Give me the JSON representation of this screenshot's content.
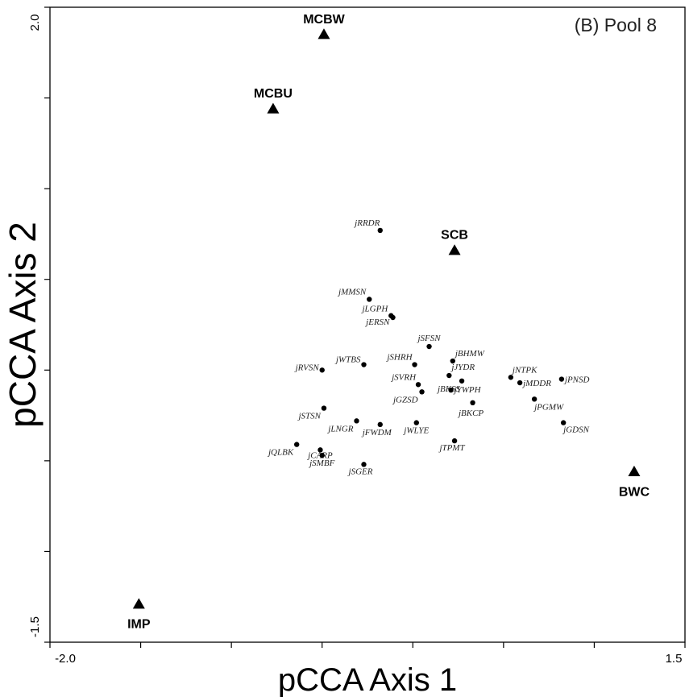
{
  "chart_data": {
    "type": "scatter",
    "title": "(B) Pool 8",
    "xlabel": "pCCA Axis 1",
    "ylabel": "pCCA Axis 2",
    "xlim": [
      -2.0,
      1.5
    ],
    "ylim": [
      -1.5,
      2.0
    ],
    "x_tick_labels": [
      "-2.0",
      "1.5"
    ],
    "y_tick_labels": [
      "-1.5",
      "2.0"
    ],
    "x_ticks": [
      -2.0,
      -1.5,
      -1.0,
      -0.5,
      0.0,
      0.5,
      1.0,
      1.5
    ],
    "y_ticks": [
      -1.5,
      -1.0,
      -0.5,
      0.0,
      0.5,
      1.0,
      1.5,
      2.0
    ],
    "grid": false,
    "series": [
      {
        "name": "sites",
        "marker": "triangle",
        "points": [
          {
            "label": "MCBW",
            "x": -0.49,
            "y": 1.85
          },
          {
            "label": "MCBU",
            "x": -0.77,
            "y": 1.44
          },
          {
            "label": "SCB",
            "x": 0.23,
            "y": 0.66
          },
          {
            "label": "BWC",
            "x": 1.22,
            "y": -0.56
          },
          {
            "label": "IMP",
            "x": -1.51,
            "y": -1.29
          }
        ]
      },
      {
        "name": "species",
        "marker": "dot",
        "points": [
          {
            "label": "jRRDR",
            "x": -0.18,
            "y": 0.77
          },
          {
            "label": "jMMSN",
            "x": -0.24,
            "y": 0.39
          },
          {
            "label": "jLGPH",
            "x": -0.12,
            "y": 0.3
          },
          {
            "label": "jERSN",
            "x": -0.11,
            "y": 0.29
          },
          {
            "label": "jSFSN",
            "x": 0.09,
            "y": 0.13
          },
          {
            "label": "jSHRH",
            "x": 0.01,
            "y": 0.03
          },
          {
            "label": "jBHMW",
            "x": 0.22,
            "y": 0.05
          },
          {
            "label": "jJYDR",
            "x": 0.2,
            "y": -0.03
          },
          {
            "label": "jWTBS",
            "x": -0.27,
            "y": 0.03
          },
          {
            "label": "jRVSN",
            "x": -0.5,
            "y": 0.0
          },
          {
            "label": "jNTPK",
            "x": 0.54,
            "y": -0.04
          },
          {
            "label": "jPNSD",
            "x": 0.82,
            "y": -0.05
          },
          {
            "label": "jMDDR",
            "x": 0.59,
            "y": -0.07
          },
          {
            "label": "jSVRH",
            "x": 0.03,
            "y": -0.08
          },
          {
            "label": "jBKSS",
            "x": 0.27,
            "y": -0.06
          },
          {
            "label": "jYWPH",
            "x": 0.21,
            "y": -0.11
          },
          {
            "label": "jGZSD",
            "x": 0.05,
            "y": -0.12
          },
          {
            "label": "jPGMW",
            "x": 0.67,
            "y": -0.16
          },
          {
            "label": "jBKCP",
            "x": 0.33,
            "y": -0.18
          },
          {
            "label": "jSTSN",
            "x": -0.49,
            "y": -0.21
          },
          {
            "label": "jLNGR",
            "x": -0.31,
            "y": -0.28
          },
          {
            "label": "jFWDM",
            "x": -0.18,
            "y": -0.3
          },
          {
            "label": "jWLYE",
            "x": 0.02,
            "y": -0.29
          },
          {
            "label": "jGDSN",
            "x": 0.83,
            "y": -0.29
          },
          {
            "label": "jTPMT",
            "x": 0.23,
            "y": -0.39
          },
          {
            "label": "jQLBK",
            "x": -0.64,
            "y": -0.41
          },
          {
            "label": "jCARP",
            "x": -0.51,
            "y": -0.44
          },
          {
            "label": "jSMBF",
            "x": -0.5,
            "y": -0.47
          },
          {
            "label": "jSGER",
            "x": -0.27,
            "y": -0.52
          }
        ]
      }
    ]
  }
}
